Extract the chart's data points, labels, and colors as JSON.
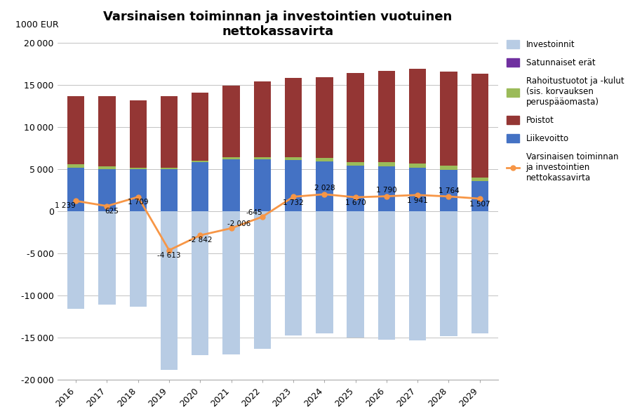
{
  "years": [
    2016,
    2017,
    2018,
    2019,
    2020,
    2021,
    2022,
    2023,
    2024,
    2025,
    2026,
    2027,
    2028,
    2029
  ],
  "liikevoitto": [
    5200,
    5000,
    5000,
    5000,
    5800,
    6200,
    6200,
    6100,
    5900,
    5400,
    5300,
    5200,
    4900,
    3600
  ],
  "rahoitustuotot": [
    400,
    300,
    200,
    200,
    200,
    200,
    200,
    300,
    400,
    400,
    500,
    500,
    500,
    400
  ],
  "poistot": [
    8100,
    8400,
    8000,
    8500,
    8100,
    8500,
    9000,
    9400,
    9600,
    10600,
    10900,
    11200,
    11200,
    12300
  ],
  "satunnaiset": [
    0,
    0,
    0,
    0,
    0,
    0,
    0,
    0,
    0,
    0,
    0,
    0,
    0,
    0
  ],
  "investoinnit": [
    -11600,
    -11100,
    -11300,
    -18800,
    -17100,
    -17000,
    -16300,
    -14700,
    -14500,
    -15000,
    -15200,
    -15300,
    -14800,
    -14500
  ],
  "net_cashflow": [
    1239,
    625,
    1709,
    -4613,
    -2842,
    -2006,
    -645,
    1732,
    2028,
    1670,
    1790,
    1941,
    1764,
    1507
  ],
  "net_labels": [
    "1 239",
    "625",
    "1 709",
    "-4 613",
    "-2 842",
    "-2 006",
    "-645",
    "1 732",
    "2 028",
    "1 670",
    "1 790",
    "1 941",
    "1 764",
    "1 507"
  ],
  "title": "Varsinaisen toiminnan ja investointien vuotuinen\nnettokassavirta",
  "ylabel": "1000 EUR",
  "ylim_min": -20000,
  "ylim_max": 20000,
  "yticks": [
    -20000,
    -15000,
    -10000,
    -5000,
    0,
    5000,
    10000,
    15000,
    20000
  ],
  "color_liikevoitto": "#4472c4",
  "color_poistot": "#943634",
  "color_rahoitustuotot": "#9bbb59",
  "color_satunnaiset": "#7030a0",
  "color_investoinnit": "#b8cce4",
  "color_line": "#f79646",
  "bar_width": 0.55
}
